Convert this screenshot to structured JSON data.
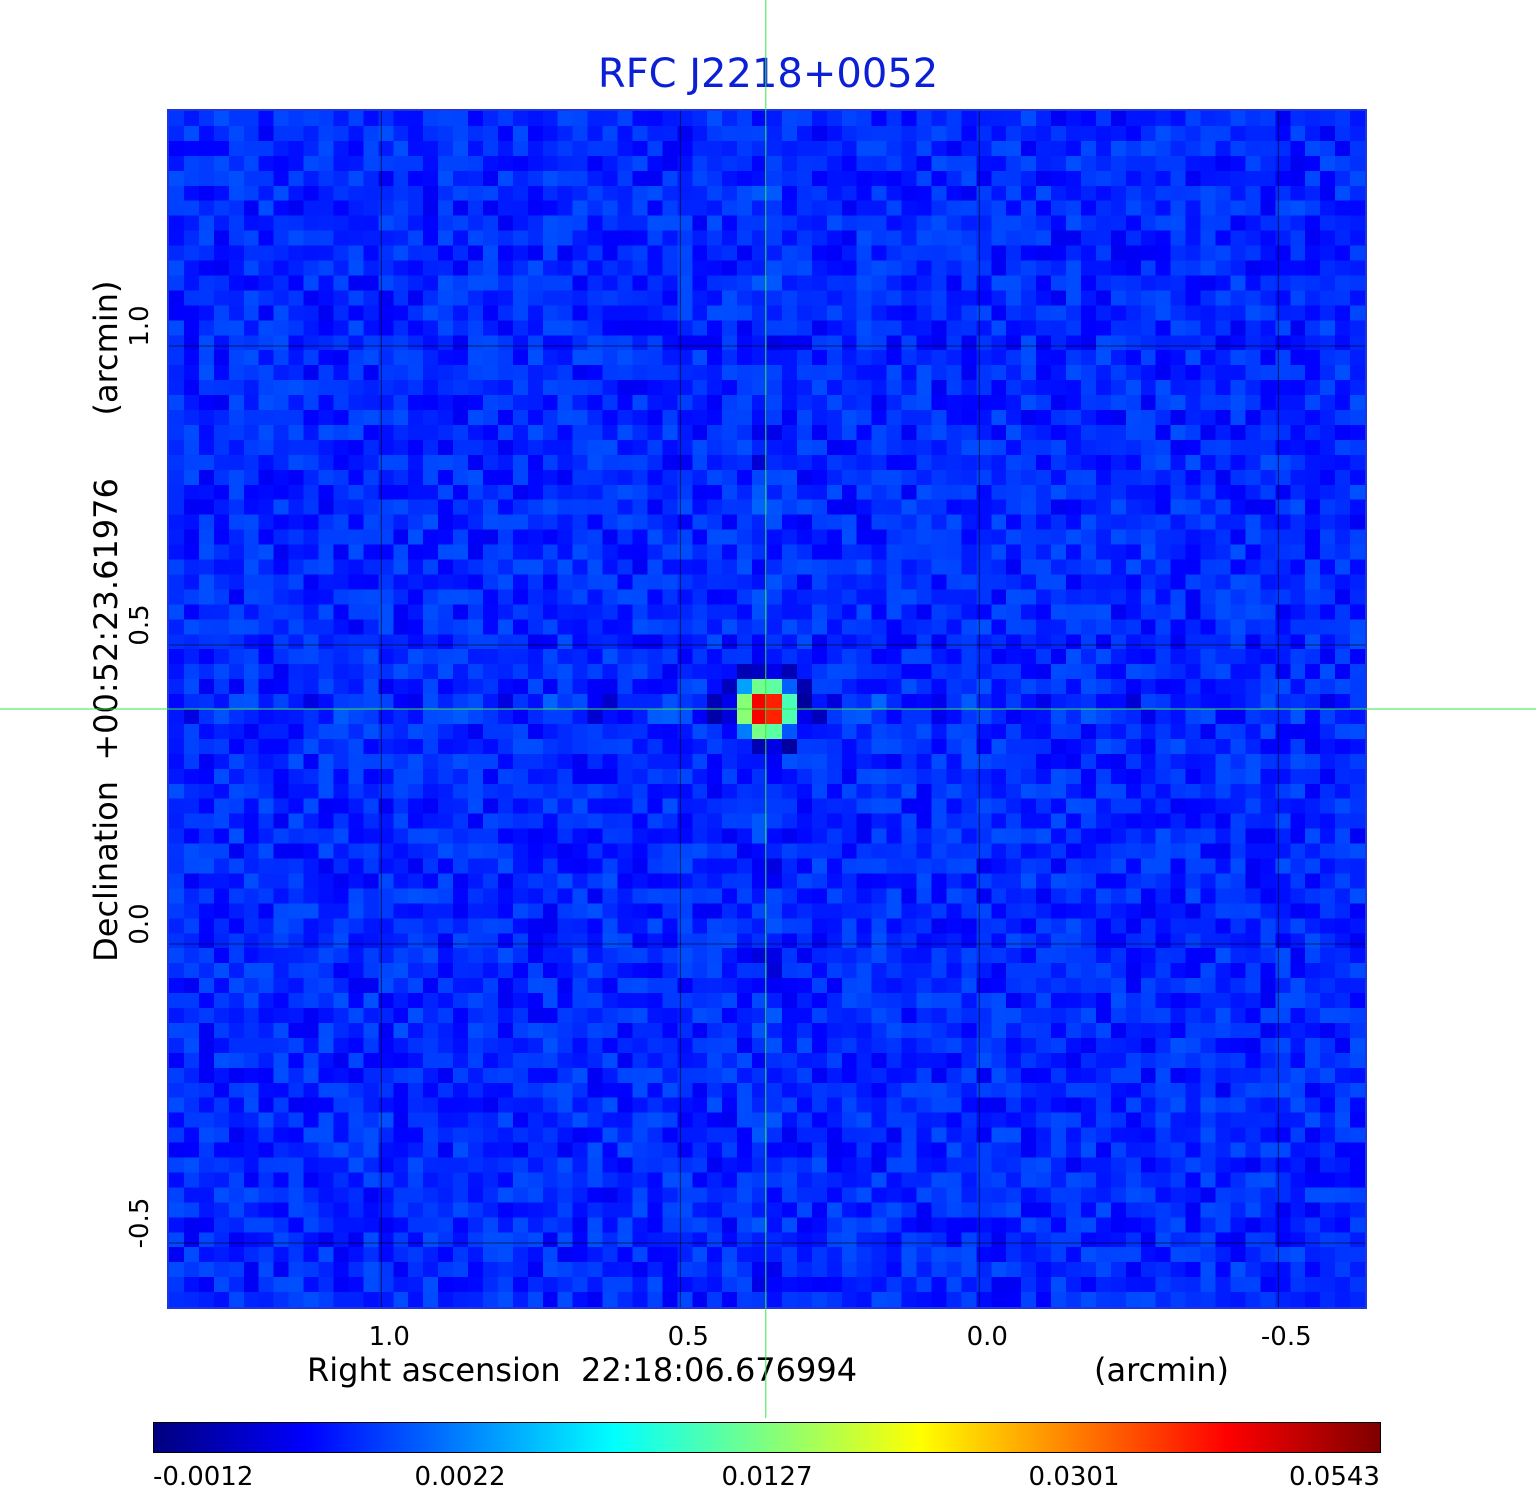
{
  "title": "RFC J2218+0052",
  "colors": {
    "title": "#0b1fd6",
    "crosshair": "#35e64a",
    "background_map": "#2258f2",
    "colormap": [
      "#00007f",
      "#0000ff",
      "#007fff",
      "#00ffff",
      "#7fff7f",
      "#ffff00",
      "#ff7f00",
      "#ff0000",
      "#7f0000"
    ]
  },
  "chart_data": {
    "type": "heatmap",
    "title": "RFC J2218+0052",
    "xlabel": "Right ascension  22:18:06.676994",
    "xunit": "(arcmin)",
    "ylabel": "Declination  +00:52:23.61976",
    "yunit": "(arcmin)",
    "x_ticks": [
      {
        "label": "1.0",
        "value": 1.0
      },
      {
        "label": "0.5",
        "value": 0.5
      },
      {
        "label": "0.0",
        "value": 0.0
      },
      {
        "label": "-0.5",
        "value": -0.5
      }
    ],
    "y_ticks": [
      {
        "label": "1.0",
        "value": 1.0
      },
      {
        "label": "0.5",
        "value": 0.5
      },
      {
        "label": "0.0",
        "value": 0.0
      },
      {
        "label": "-0.5",
        "value": -0.5
      }
    ],
    "xlim": [
      1.355,
      -0.645
    ],
    "ylim": [
      -0.607,
      1.393
    ],
    "grid": true,
    "source": {
      "x": 0.357,
      "y": 0.393,
      "peak": 0.0543
    },
    "crosshair": {
      "x": 0.357,
      "y": 0.393
    },
    "colorbar": {
      "ticks": [
        "-0.0012",
        "0.0022",
        "0.0127",
        "0.0301",
        "0.0543"
      ],
      "min": -0.0012,
      "max": 0.0543
    }
  }
}
